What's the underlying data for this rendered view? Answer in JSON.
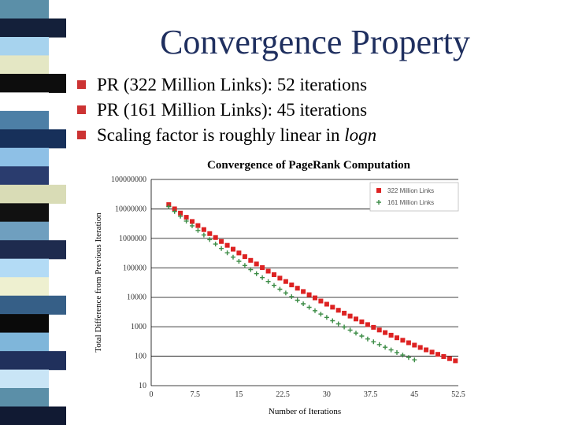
{
  "slide": {
    "title": "Convergence Property",
    "bullets": [
      {
        "text": "PR (322 Million Links): 52 iterations"
      },
      {
        "text": "PR (161 Million Links): 45 iterations"
      },
      {
        "text": "Scaling factor is roughly linear in ",
        "em": "logn"
      }
    ]
  },
  "colors": {
    "title": "#1f2f5f",
    "bullet_marker": "#cc3333",
    "series_322": "#dd2222",
    "series_161": "#3c8c46"
  },
  "strip": {
    "colors": [
      "#5b8fa8",
      "#14203a",
      "#a7d3ee",
      "#e4e7c4",
      "#0d0d0d",
      "#ffffff",
      "#4d7fa6",
      "#17305a",
      "#8ec0e6",
      "#2a3c6e",
      "#d9dcb6",
      "#111111",
      "#6f9fbf",
      "#1e2b4e",
      "#b3dbf5",
      "#eef0d0",
      "#365f87",
      "#0a0a0a",
      "#7fb6da",
      "#20305c",
      "#c9e5f6",
      "#5b8fa8",
      "#111a33"
    ]
  },
  "chart_data": {
    "type": "scatter",
    "title": "Convergence of PageRank Computation",
    "xlabel": "Number of Iterations",
    "ylabel": "Total Difference from Previous Iteration",
    "xlim": [
      0,
      52.5
    ],
    "ylim": [
      10,
      100000000
    ],
    "yscale": "log",
    "xticks": [
      "0",
      "7.5",
      "15",
      "22.5",
      "30",
      "37.5",
      "45",
      "52.5"
    ],
    "yticks": [
      "100000000",
      "10000000",
      "1000000",
      "100000",
      "10000",
      "1000",
      "100",
      "10"
    ],
    "grid": "horizontal",
    "legend_position": "top-right",
    "series": [
      {
        "name": "322 Million Links",
        "marker": "square",
        "x_start": 3,
        "x_end": 52,
        "y_start": 14000000,
        "y_end": 70
      },
      {
        "name": "161 Million Links",
        "marker": "plus",
        "x_start": 3,
        "x_end": 45,
        "y_start": 12000000,
        "y_end": 75
      }
    ]
  }
}
